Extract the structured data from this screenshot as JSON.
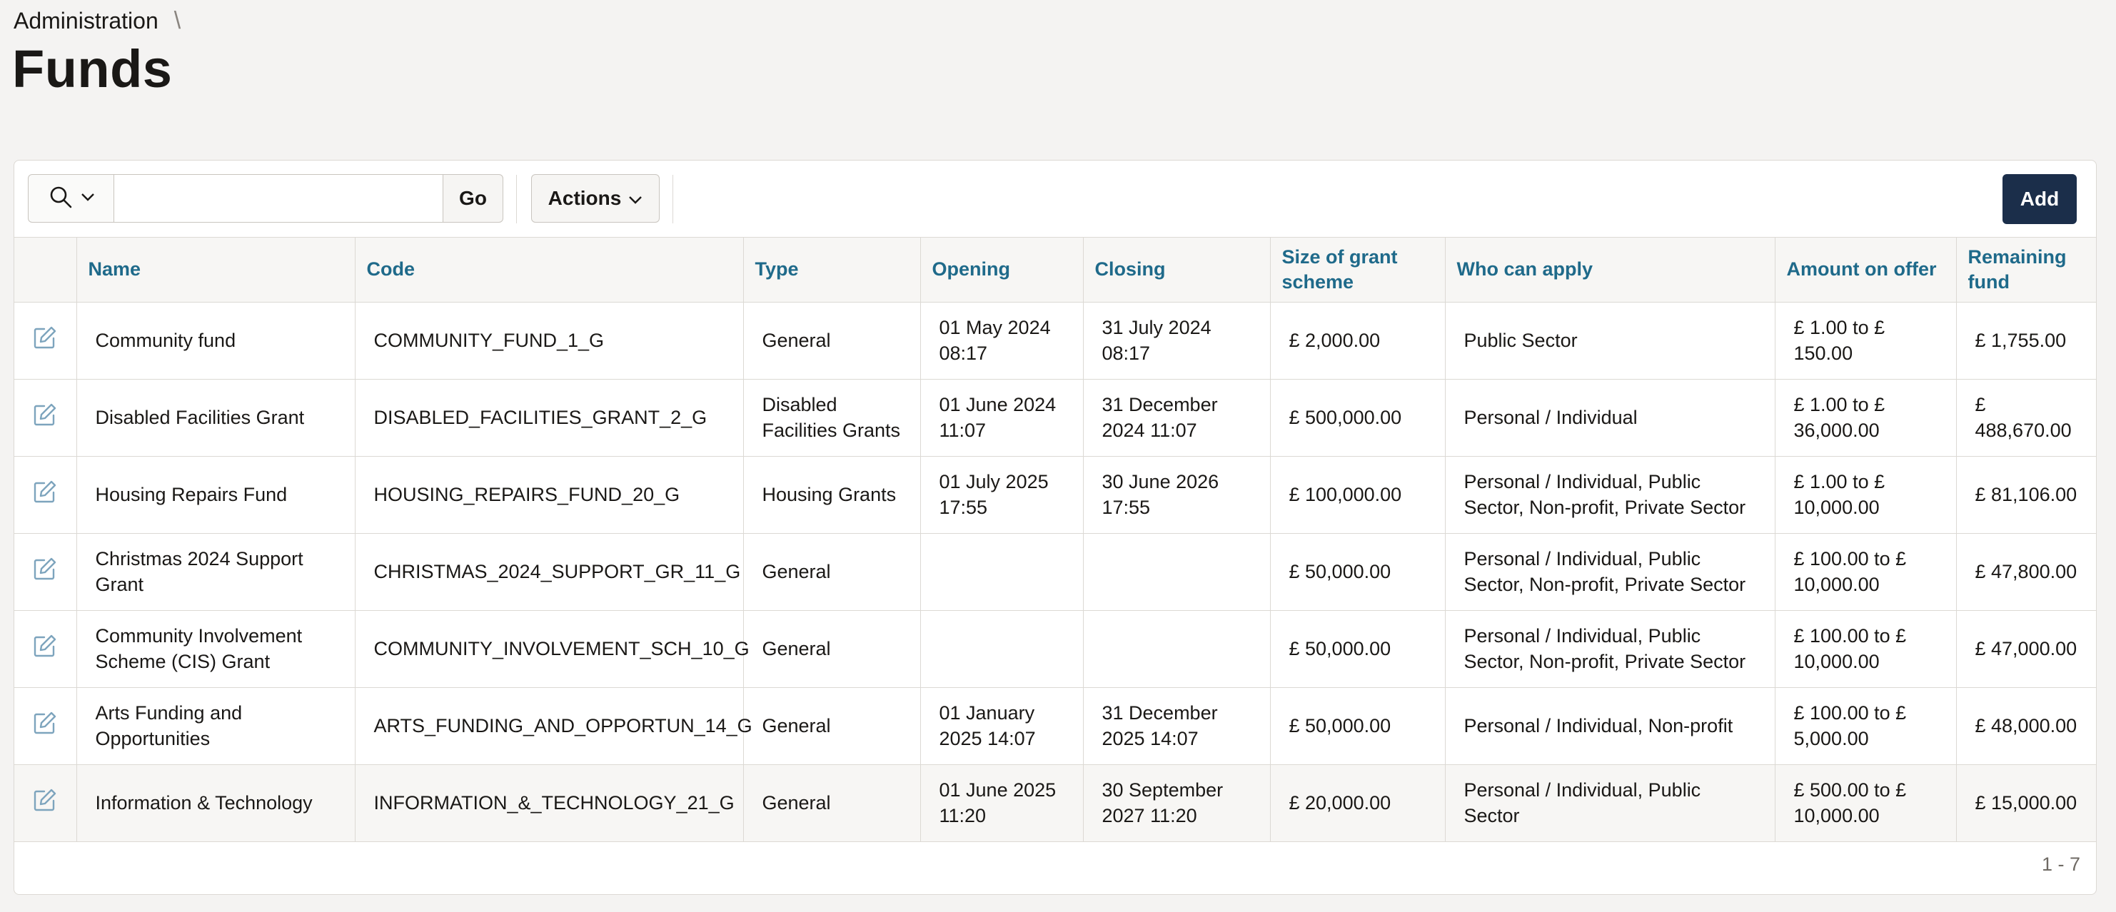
{
  "breadcrumb": {
    "parent": "Administration",
    "separator": "\\"
  },
  "page": {
    "title": "Funds"
  },
  "toolbar": {
    "search_icon": "search-icon",
    "search_value": "",
    "go_label": "Go",
    "actions_label": "Actions",
    "add_label": "Add"
  },
  "colors": {
    "header_text": "#1f6a8a",
    "add_button": "#1b2e4a"
  },
  "table": {
    "columns": [
      "Name",
      "Code",
      "Type",
      "Opening",
      "Closing",
      "Size of grant scheme",
      "Who can apply",
      "Amount on offer",
      "Remaining fund"
    ],
    "rows": [
      [
        "Community fund",
        "COMMUNITY_FUND_1_G",
        "General",
        "01 May 2024 08:17",
        "31 July 2024 08:17",
        "£ 2,000.00",
        "Public Sector",
        "£ 1.00 to £ 150.00",
        "£ 1,755.00"
      ],
      [
        "Disabled Facilities Grant",
        "DISABLED_FACILITIES_GRANT_2_G",
        "Disabled Facilities Grants",
        "01 June 2024 11:07",
        "31 December 2024 11:07",
        "£ 500,000.00",
        "Personal / Individual",
        "£ 1.00 to £ 36,000.00",
        "£ 488,670.00"
      ],
      [
        "Housing Repairs Fund",
        "HOUSING_REPAIRS_FUND_20_G",
        "Housing Grants",
        "01 July 2025 17:55",
        "30 June 2026 17:55",
        "£ 100,000.00",
        "Personal / Individual, Public Sector, Non-profit, Private Sector",
        "£ 1.00 to £ 10,000.00",
        "£ 81,106.00"
      ],
      [
        "Christmas 2024 Support Grant",
        "CHRISTMAS_2024_SUPPORT_GR_11_G",
        "General",
        "",
        "",
        "£ 50,000.00",
        "Personal / Individual, Public Sector, Non-profit, Private Sector",
        "£ 100.00 to £ 10,000.00",
        "£ 47,800.00"
      ],
      [
        "Community Involvement Scheme (CIS) Grant",
        "COMMUNITY_INVOLVEMENT_SCH_10_G",
        "General",
        "",
        "",
        "£ 50,000.00",
        "Personal / Individual, Public Sector, Non-profit, Private Sector",
        "£ 100.00 to £ 10,000.00",
        "£ 47,000.00"
      ],
      [
        "Arts Funding and Opportunities",
        "ARTS_FUNDING_AND_OPPORTUN_14_G",
        "General",
        "01 January 2025 14:07",
        "31 December 2025 14:07",
        "£ 50,000.00",
        "Personal / Individual, Non-profit",
        "£ 100.00 to £ 5,000.00",
        "£ 48,000.00"
      ],
      [
        "Information & Technology",
        "INFORMATION_&_TECHNOLOGY_21_G",
        "General",
        "01 June 2025 11:20",
        "30 September 2027 11:20",
        "£ 20,000.00",
        "Personal / Individual, Public Sector",
        "£ 500.00 to £ 10,000.00",
        "£ 15,000.00"
      ]
    ]
  },
  "pagination": {
    "range": "1 - 7"
  }
}
